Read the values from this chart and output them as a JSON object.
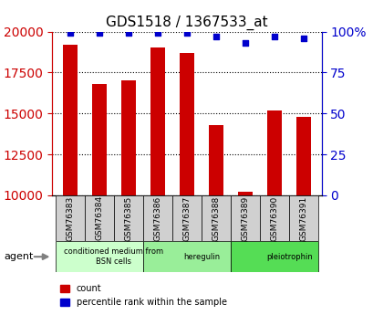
{
  "title": "GDS1518 / 1367533_at",
  "categories": [
    "GSM76383",
    "GSM76384",
    "GSM76385",
    "GSM76386",
    "GSM76387",
    "GSM76388",
    "GSM76389",
    "GSM76390",
    "GSM76391"
  ],
  "counts": [
    19200,
    16800,
    17000,
    19000,
    18700,
    14300,
    10200,
    15200,
    14800
  ],
  "percentiles": [
    99,
    99,
    99,
    99,
    99,
    97,
    93,
    97,
    96
  ],
  "ylim_left": [
    10000,
    20000
  ],
  "ylim_right": [
    0,
    100
  ],
  "yticks_left": [
    10000,
    12500,
    15000,
    17500,
    20000
  ],
  "yticks_right": [
    0,
    25,
    50,
    75,
    100
  ],
  "bar_color": "#cc0000",
  "dot_color": "#0000cc",
  "left_tick_color": "#cc0000",
  "right_tick_color": "#0000cc",
  "groups": [
    {
      "label": "conditioned medium from\nBSN cells",
      "start": 0,
      "end": 3,
      "color": "#ccffcc"
    },
    {
      "label": "heregulin",
      "start": 3,
      "end": 6,
      "color": "#99ee99"
    },
    {
      "label": "pleiotrophin",
      "start": 6,
      "end": 9,
      "color": "#55dd55"
    }
  ],
  "agent_label": "agent",
  "legend_count_label": "count",
  "legend_percentile_label": "percentile rank within the sample",
  "bar_width": 0.5
}
